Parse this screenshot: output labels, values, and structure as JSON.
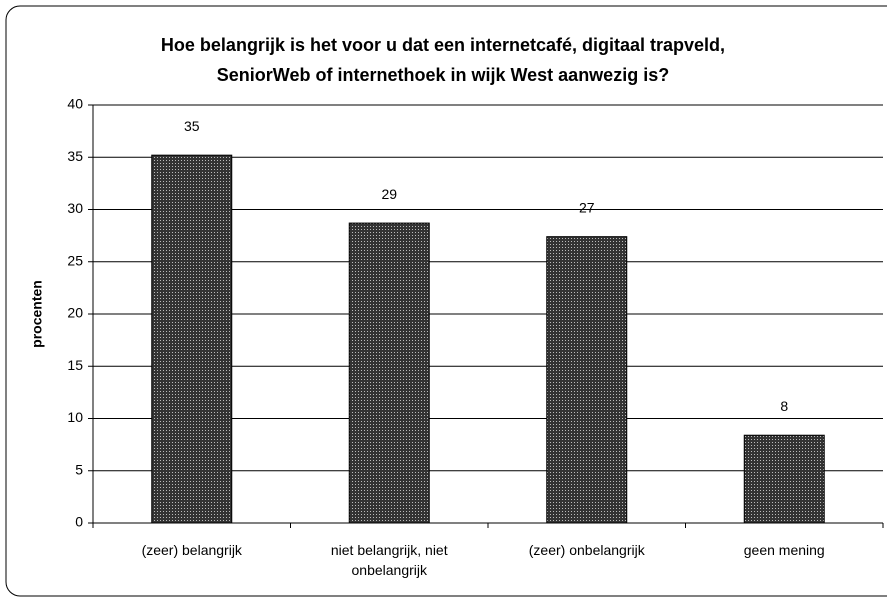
{
  "chart_data": {
    "type": "bar",
    "title": "Hoe belangrijk is het voor u dat een internetcafé, digitaal trapveld, SeniorWeb of internethoek in wijk West aanwezig is?",
    "y_label": "procenten",
    "categories": [
      "(zeer) belangrijk",
      "niet belangrijk, niet onbelangrijk",
      "(zeer) onbelangrijk",
      "geen mening"
    ],
    "values": [
      35.2,
      28.7,
      27.4,
      8.4
    ],
    "value_labels": [
      "35",
      "29",
      "27",
      "8"
    ],
    "color": "#444444",
    "ylim": [
      0,
      40
    ],
    "yticks": [
      0,
      5,
      10,
      15,
      20,
      25,
      30,
      35,
      40
    ],
    "grid": true
  }
}
